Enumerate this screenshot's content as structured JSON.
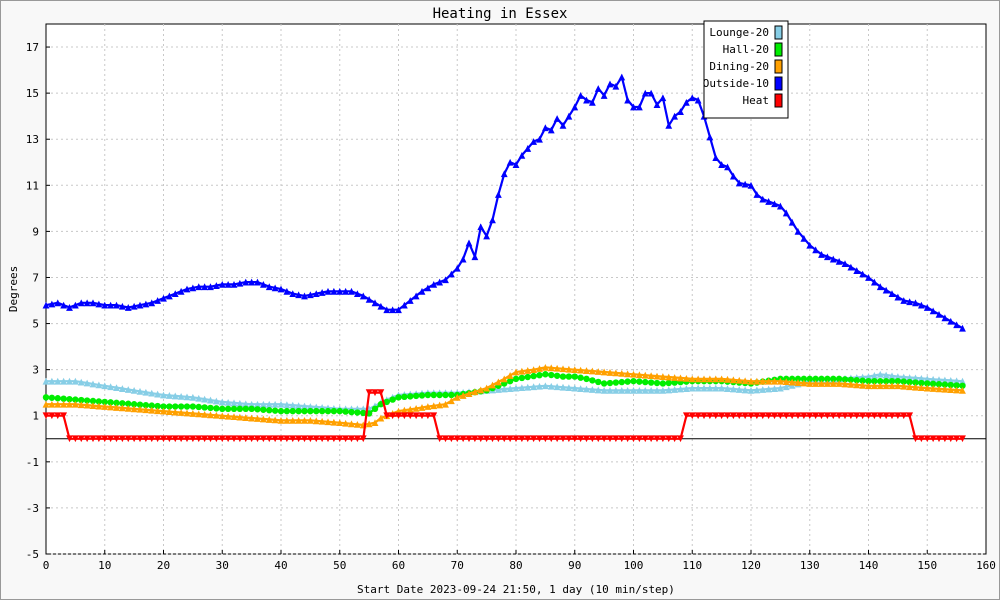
{
  "chart_data": {
    "type": "line",
    "title": "Heating in Essex",
    "xlabel": "Start Date 2023-09-24 21:50, 1 day (10 min/step)",
    "ylabel": "Degrees",
    "xlim": [
      0,
      160
    ],
    "ylim": [
      -5,
      18
    ],
    "x_ticks": [
      0,
      10,
      20,
      30,
      40,
      50,
      60,
      70,
      80,
      90,
      100,
      110,
      120,
      130,
      140,
      150,
      160
    ],
    "y_ticks": [
      -5,
      -3,
      -1,
      1,
      3,
      5,
      7,
      9,
      11,
      13,
      15,
      17
    ],
    "grid": true,
    "legend_position": "top-right",
    "series": [
      {
        "name": "Lounge-20",
        "color": "#87cee6",
        "marker": "triangle",
        "points": [
          [
            0,
            2.5
          ],
          [
            5,
            2.5
          ],
          [
            10,
            2.3
          ],
          [
            15,
            2.1
          ],
          [
            20,
            1.9
          ],
          [
            25,
            1.8
          ],
          [
            30,
            1.6
          ],
          [
            35,
            1.5
          ],
          [
            40,
            1.5
          ],
          [
            45,
            1.4
          ],
          [
            50,
            1.3
          ],
          [
            55,
            1.3
          ],
          [
            58,
            1.7
          ],
          [
            60,
            1.9
          ],
          [
            65,
            2.0
          ],
          [
            70,
            2.0
          ],
          [
            75,
            2.1
          ],
          [
            80,
            2.2
          ],
          [
            85,
            2.3
          ],
          [
            90,
            2.2
          ],
          [
            95,
            2.1
          ],
          [
            100,
            2.1
          ],
          [
            105,
            2.1
          ],
          [
            110,
            2.2
          ],
          [
            115,
            2.2
          ],
          [
            120,
            2.1
          ],
          [
            125,
            2.2
          ],
          [
            130,
            2.5
          ],
          [
            135,
            2.6
          ],
          [
            140,
            2.7
          ],
          [
            142,
            2.8
          ],
          [
            145,
            2.7
          ],
          [
            150,
            2.6
          ],
          [
            156,
            2.5
          ]
        ]
      },
      {
        "name": "Hall-20",
        "color": "#00ee00",
        "marker": "circle",
        "points": [
          [
            0,
            1.8
          ],
          [
            5,
            1.7
          ],
          [
            10,
            1.6
          ],
          [
            15,
            1.5
          ],
          [
            20,
            1.4
          ],
          [
            25,
            1.4
          ],
          [
            30,
            1.3
          ],
          [
            35,
            1.3
          ],
          [
            40,
            1.2
          ],
          [
            45,
            1.2
          ],
          [
            50,
            1.2
          ],
          [
            55,
            1.1
          ],
          [
            57,
            1.5
          ],
          [
            60,
            1.8
          ],
          [
            65,
            1.9
          ],
          [
            70,
            1.9
          ],
          [
            75,
            2.1
          ],
          [
            78,
            2.4
          ],
          [
            80,
            2.6
          ],
          [
            85,
            2.8
          ],
          [
            88,
            2.7
          ],
          [
            90,
            2.7
          ],
          [
            92,
            2.6
          ],
          [
            95,
            2.4
          ],
          [
            100,
            2.5
          ],
          [
            105,
            2.4
          ],
          [
            110,
            2.5
          ],
          [
            115,
            2.5
          ],
          [
            120,
            2.4
          ],
          [
            125,
            2.6
          ],
          [
            130,
            2.6
          ],
          [
            135,
            2.6
          ],
          [
            140,
            2.5
          ],
          [
            145,
            2.5
          ],
          [
            150,
            2.4
          ],
          [
            156,
            2.3
          ]
        ]
      },
      {
        "name": "Dining-20",
        "color": "#ffa000",
        "marker": "triangle",
        "points": [
          [
            0,
            1.5
          ],
          [
            5,
            1.5
          ],
          [
            10,
            1.4
          ],
          [
            15,
            1.3
          ],
          [
            20,
            1.2
          ],
          [
            25,
            1.1
          ],
          [
            30,
            1.0
          ],
          [
            35,
            0.9
          ],
          [
            40,
            0.8
          ],
          [
            45,
            0.8
          ],
          [
            50,
            0.7
          ],
          [
            54,
            0.6
          ],
          [
            56,
            0.7
          ],
          [
            57,
            0.9
          ],
          [
            60,
            1.2
          ],
          [
            65,
            1.4
          ],
          [
            68,
            1.5
          ],
          [
            70,
            1.8
          ],
          [
            75,
            2.2
          ],
          [
            78,
            2.6
          ],
          [
            80,
            2.9
          ],
          [
            83,
            3.0
          ],
          [
            85,
            3.1
          ],
          [
            90,
            3.0
          ],
          [
            95,
            2.9
          ],
          [
            100,
            2.8
          ],
          [
            105,
            2.7
          ],
          [
            110,
            2.6
          ],
          [
            115,
            2.6
          ],
          [
            120,
            2.5
          ],
          [
            125,
            2.5
          ],
          [
            130,
            2.4
          ],
          [
            135,
            2.4
          ],
          [
            140,
            2.3
          ],
          [
            145,
            2.3
          ],
          [
            150,
            2.2
          ],
          [
            156,
            2.1
          ]
        ]
      },
      {
        "name": "Outside-10",
        "color": "#0000ff",
        "marker": "triangle",
        "points": [
          [
            0,
            5.8
          ],
          [
            2,
            5.9
          ],
          [
            4,
            5.7
          ],
          [
            6,
            5.9
          ],
          [
            8,
            5.9
          ],
          [
            10,
            5.8
          ],
          [
            12,
            5.8
          ],
          [
            14,
            5.7
          ],
          [
            16,
            5.8
          ],
          [
            18,
            5.9
          ],
          [
            20,
            6.1
          ],
          [
            22,
            6.3
          ],
          [
            24,
            6.5
          ],
          [
            26,
            6.6
          ],
          [
            28,
            6.6
          ],
          [
            30,
            6.7
          ],
          [
            32,
            6.7
          ],
          [
            34,
            6.8
          ],
          [
            36,
            6.8
          ],
          [
            38,
            6.6
          ],
          [
            40,
            6.5
          ],
          [
            42,
            6.3
          ],
          [
            44,
            6.2
          ],
          [
            46,
            6.3
          ],
          [
            48,
            6.4
          ],
          [
            50,
            6.4
          ],
          [
            52,
            6.4
          ],
          [
            54,
            6.2
          ],
          [
            56,
            5.9
          ],
          [
            58,
            5.6
          ],
          [
            60,
            5.6
          ],
          [
            62,
            6.0
          ],
          [
            64,
            6.4
          ],
          [
            66,
            6.7
          ],
          [
            68,
            6.9
          ],
          [
            70,
            7.4
          ],
          [
            71,
            7.8
          ],
          [
            72,
            8.5
          ],
          [
            73,
            7.9
          ],
          [
            74,
            9.2
          ],
          [
            75,
            8.8
          ],
          [
            76,
            9.5
          ],
          [
            77,
            10.6
          ],
          [
            78,
            11.5
          ],
          [
            79,
            12.0
          ],
          [
            80,
            11.9
          ],
          [
            81,
            12.3
          ],
          [
            82,
            12.6
          ],
          [
            83,
            12.9
          ],
          [
            84,
            13.0
          ],
          [
            85,
            13.5
          ],
          [
            86,
            13.4
          ],
          [
            87,
            13.9
          ],
          [
            88,
            13.6
          ],
          [
            89,
            14.0
          ],
          [
            90,
            14.4
          ],
          [
            91,
            14.9
          ],
          [
            92,
            14.7
          ],
          [
            93,
            14.6
          ],
          [
            94,
            15.2
          ],
          [
            95,
            14.9
          ],
          [
            96,
            15.4
          ],
          [
            97,
            15.3
          ],
          [
            98,
            15.7
          ],
          [
            99,
            14.7
          ],
          [
            100,
            14.4
          ],
          [
            101,
            14.4
          ],
          [
            102,
            15.0
          ],
          [
            103,
            15.0
          ],
          [
            104,
            14.5
          ],
          [
            105,
            14.8
          ],
          [
            106,
            13.6
          ],
          [
            107,
            14.0
          ],
          [
            108,
            14.2
          ],
          [
            109,
            14.6
          ],
          [
            110,
            14.8
          ],
          [
            111,
            14.7
          ],
          [
            112,
            14.0
          ],
          [
            113,
            13.1
          ],
          [
            114,
            12.2
          ],
          [
            115,
            11.9
          ],
          [
            116,
            11.8
          ],
          [
            117,
            11.4
          ],
          [
            118,
            11.1
          ],
          [
            120,
            11.0
          ],
          [
            121,
            10.6
          ],
          [
            122,
            10.4
          ],
          [
            124,
            10.2
          ],
          [
            125,
            10.1
          ],
          [
            126,
            9.8
          ],
          [
            127,
            9.4
          ],
          [
            128,
            9.0
          ],
          [
            130,
            8.4
          ],
          [
            132,
            8.0
          ],
          [
            134,
            7.8
          ],
          [
            136,
            7.6
          ],
          [
            138,
            7.3
          ],
          [
            140,
            7.0
          ],
          [
            142,
            6.6
          ],
          [
            144,
            6.3
          ],
          [
            146,
            6.0
          ],
          [
            148,
            5.9
          ],
          [
            150,
            5.7
          ],
          [
            152,
            5.4
          ],
          [
            154,
            5.1
          ],
          [
            156,
            4.8
          ]
        ]
      },
      {
        "name": "Heat",
        "color": "#ff0000",
        "marker": "triangle-down",
        "points": [
          [
            0,
            1.0
          ],
          [
            3,
            1.0
          ],
          [
            4,
            0
          ],
          [
            54,
            0
          ],
          [
            55,
            2.0
          ],
          [
            57,
            2.0
          ],
          [
            58,
            1.0
          ],
          [
            66,
            1.0
          ],
          [
            67,
            0
          ],
          [
            108,
            0
          ],
          [
            109,
            1.0
          ],
          [
            147,
            1.0
          ],
          [
            148,
            0
          ],
          [
            156,
            0
          ]
        ]
      }
    ]
  }
}
